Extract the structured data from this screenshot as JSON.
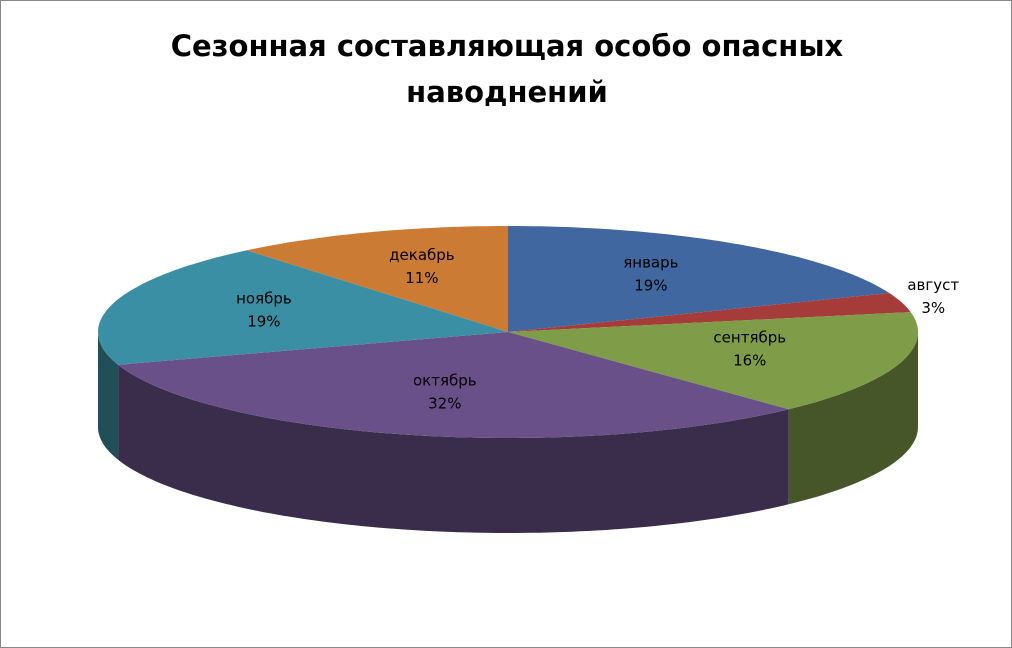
{
  "chart_data": {
    "type": "pie",
    "title": "Сезонная составляющая особо опасных наводнений",
    "categories": [
      "январь",
      "август",
      "сентябрь",
      "октябрь",
      "ноябрь",
      "декабрь"
    ],
    "values": [
      19,
      3,
      16,
      32,
      19,
      11
    ],
    "value_labels": [
      "19%",
      "3%",
      "16%",
      "32%",
      "19%",
      "11%"
    ],
    "colors": [
      "#4067a0",
      "#a63c3a",
      "#7f9c48",
      "#6a5088",
      "#3b8fa4",
      "#cc7b35"
    ]
  }
}
